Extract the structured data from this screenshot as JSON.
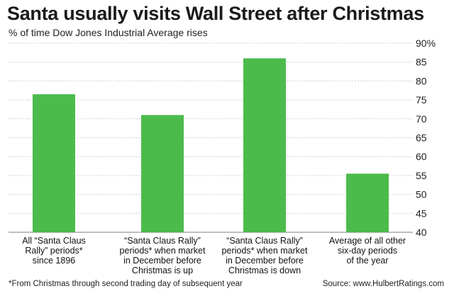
{
  "chart_data": {
    "type": "bar",
    "title": "Santa usually visits Wall Street after Christmas",
    "subtitle": "% of time Dow Jones Industrial Average rises",
    "categories": [
      [
        "All “Santa Claus",
        "Rally” periods*",
        "since 1896"
      ],
      [
        "“Santa Claus Rally”",
        "periods* when market",
        "in December before",
        "Christmas is up"
      ],
      [
        "“Santa Claus Rally”",
        "periods* when market",
        "in December before",
        "Christmas is down"
      ],
      [
        "Average of all other",
        "six-day periods",
        "of the year"
      ]
    ],
    "values": [
      76.5,
      71,
      86,
      55.5
    ],
    "ylim": [
      40,
      90
    ],
    "yticks": [
      "40",
      "45",
      "50",
      "55",
      "60",
      "65",
      "70",
      "75",
      "80",
      "85",
      "90%"
    ],
    "grid": true,
    "bar_color": "#4cbb4c",
    "grid_color": "#cfcfcf"
  },
  "footnote": "*From Christmas through second trading day of subsequent year",
  "source": "Source: www.HulbertRatings.com"
}
